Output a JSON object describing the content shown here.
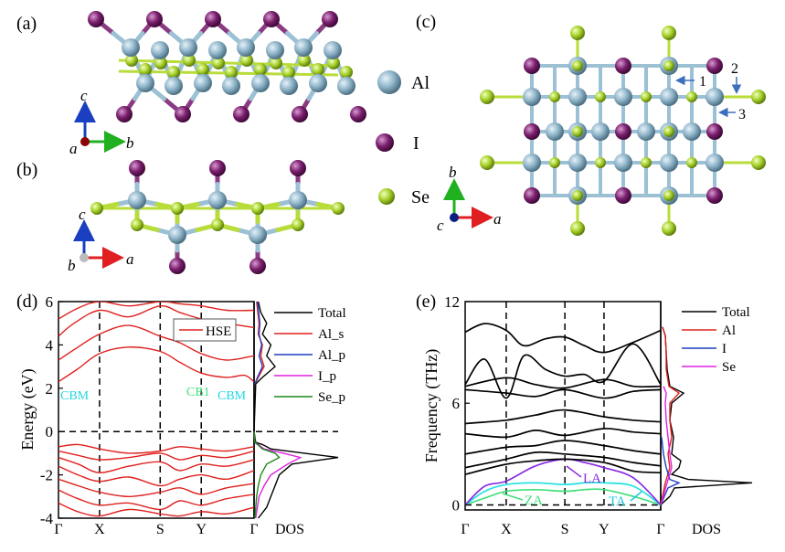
{
  "panels": {
    "a": "(a)",
    "b": "(b)",
    "c": "(c)",
    "d": "(d)",
    "e": "(e)"
  },
  "species_legend": [
    {
      "label": "Al",
      "color": "#8fb4c9"
    },
    {
      "label": "I",
      "color": "#7b1f6e"
    },
    {
      "label": "Se",
      "color": "#a6d12a"
    }
  ],
  "axes_glyphs": {
    "a_panel": {
      "up": "c",
      "origin": "a",
      "right": "b"
    },
    "b_panel": {
      "up": "c",
      "origin": "b",
      "right": "a"
    },
    "c_panel": {
      "up": "b",
      "origin": "c",
      "right": "a"
    }
  },
  "bond_markers": [
    "1",
    "2",
    "3"
  ],
  "colors": {
    "al": "#8fb4c9",
    "iodine": "#7b1f6e",
    "se": "#a6d12a",
    "x_axis": "#e02020",
    "y_axis": "#20b020",
    "z_axis": "#1a3fc0"
  },
  "chart_data": [
    {
      "panel": "d",
      "type": "line",
      "ylabel": "Energy (eV)",
      "ylim": [
        -4,
        6
      ],
      "yticks": [
        "6",
        "4",
        "2",
        "0",
        "-2",
        "-4"
      ],
      "ytick_values": [
        6,
        4,
        2,
        0,
        -2,
        -4
      ],
      "kpath": [
        "Γ",
        "X",
        "S",
        "Y",
        "Γ"
      ],
      "kpos": [
        0,
        0.21,
        0.52,
        0.73,
        1.0
      ],
      "fermi_level": 0,
      "band_legend": "HSE",
      "band_color": "#e0201e",
      "annotations": [
        "CBM",
        "CB1",
        "CBM"
      ],
      "conduction_bands": [
        {
          "x": [
            0,
            0.1,
            0.21,
            0.36,
            0.52,
            0.62,
            0.73,
            0.86,
            0.95,
            1.0
          ],
          "y": [
            2.3,
            2.9,
            3.6,
            3.9,
            3.7,
            3.2,
            2.7,
            2.5,
            2.6,
            2.3
          ]
        },
        {
          "x": [
            0,
            0.1,
            0.21,
            0.36,
            0.52,
            0.62,
            0.73,
            0.86,
            1.0
          ],
          "y": [
            3.3,
            3.9,
            4.5,
            4.9,
            4.4,
            4.1,
            3.6,
            3.3,
            3.5
          ]
        },
        {
          "x": [
            0,
            0.08,
            0.21,
            0.36,
            0.52,
            0.62,
            0.73,
            0.86,
            1.0
          ],
          "y": [
            4.4,
            5.0,
            5.6,
            5.3,
            5.8,
            5.5,
            5.2,
            5.0,
            4.8
          ]
        },
        {
          "x": [
            0,
            0.1,
            0.21,
            0.36,
            0.52,
            0.62,
            0.73,
            0.86,
            1.0
          ],
          "y": [
            5.2,
            5.7,
            6.0,
            5.8,
            6.0,
            5.9,
            5.8,
            5.6,
            5.6
          ]
        }
      ],
      "valence_bands": [
        {
          "x": [
            0,
            0.1,
            0.21,
            0.36,
            0.52,
            0.62,
            0.73,
            0.86,
            1.0
          ],
          "y": [
            -0.7,
            -0.6,
            -0.8,
            -1.0,
            -0.9,
            -0.7,
            -0.8,
            -0.9,
            -0.7
          ]
        },
        {
          "x": [
            0,
            0.1,
            0.21,
            0.36,
            0.52,
            0.62,
            0.73,
            0.86,
            1.0
          ],
          "y": [
            -0.9,
            -1.1,
            -1.3,
            -1.2,
            -1.0,
            -1.3,
            -1.1,
            -1.2,
            -0.9
          ]
        },
        {
          "x": [
            0,
            0.1,
            0.21,
            0.36,
            0.52,
            0.62,
            0.73,
            0.86,
            1.0
          ],
          "y": [
            -1.2,
            -1.5,
            -1.9,
            -1.6,
            -1.4,
            -1.8,
            -1.5,
            -1.6,
            -1.3
          ]
        },
        {
          "x": [
            0,
            0.1,
            0.21,
            0.36,
            0.52,
            0.62,
            0.73,
            0.86,
            1.0
          ],
          "y": [
            -1.6,
            -2.0,
            -2.3,
            -2.1,
            -2.5,
            -2.2,
            -2.0,
            -2.2,
            -1.8
          ]
        },
        {
          "x": [
            0,
            0.1,
            0.21,
            0.36,
            0.52,
            0.62,
            0.73,
            0.86,
            1.0
          ],
          "y": [
            -2.2,
            -2.5,
            -2.8,
            -3.0,
            -2.8,
            -2.6,
            -2.9,
            -2.6,
            -2.4
          ]
        },
        {
          "x": [
            0,
            0.1,
            0.21,
            0.36,
            0.52,
            0.62,
            0.73,
            0.86,
            1.0
          ],
          "y": [
            -2.7,
            -3.1,
            -3.4,
            -3.3,
            -3.6,
            -3.2,
            -3.4,
            -3.1,
            -2.9
          ]
        },
        {
          "x": [
            0,
            0.1,
            0.21,
            0.36,
            0.52,
            0.62,
            0.73,
            0.86,
            1.0
          ],
          "y": [
            -3.3,
            -3.7,
            -3.9,
            -3.6,
            -3.8,
            -3.9,
            -3.7,
            -3.8,
            -3.5
          ]
        }
      ],
      "dos_label": "DOS",
      "dos_legend": [
        {
          "name": "Total",
          "color": "#000000"
        },
        {
          "name": "Al_s",
          "color": "#e0201e"
        },
        {
          "name": "Al_p",
          "color": "#1f3fc0"
        },
        {
          "name": "I_p",
          "color": "#e020e0"
        },
        {
          "name": "Se_p",
          "color": "#1a8a1a"
        }
      ],
      "dos_curves": [
        {
          "name": "Total",
          "e": [
            -4,
            -3.5,
            -3,
            -2.5,
            -2,
            -1.5,
            -1.2,
            -1,
            -0.8,
            -0.6,
            -0.5,
            0,
            2.2,
            2.5,
            3,
            3.5,
            4,
            4.5,
            5,
            5.5,
            6
          ],
          "d": [
            0.05,
            0.15,
            0.2,
            0.25,
            0.3,
            0.45,
            1.0,
            0.6,
            0.2,
            0.1,
            0.02,
            0,
            0.02,
            0.1,
            0.25,
            0.15,
            0.2,
            0.1,
            0.15,
            0.08,
            0.05
          ]
        },
        {
          "name": "I_p",
          "e": [
            -4,
            -3,
            -2.5,
            -2,
            -1.5,
            -1.2,
            -1,
            -0.8,
            -0.6,
            -0.5,
            0
          ],
          "d": [
            0.02,
            0.06,
            0.12,
            0.2,
            0.4,
            0.55,
            0.35,
            0.12,
            0.05,
            0.01,
            0
          ]
        },
        {
          "name": "Se_p",
          "e": [
            -4,
            -3,
            -2.5,
            -2,
            -1.5,
            -1.2,
            -1,
            -0.8,
            -0.6,
            -0.5,
            0
          ],
          "d": [
            0.01,
            0.03,
            0.05,
            0.08,
            0.15,
            0.3,
            0.25,
            0.1,
            0.04,
            0.01,
            0
          ]
        },
        {
          "name": "Al_s",
          "e": [
            2.2,
            2.5,
            3,
            3.5,
            4,
            4.5,
            5,
            6
          ],
          "d": [
            0.01,
            0.05,
            0.12,
            0.08,
            0.1,
            0.05,
            0.06,
            0.03
          ]
        },
        {
          "name": "Al_p",
          "e": [
            2.2,
            2.5,
            3,
            3.5,
            4,
            4.5,
            5,
            6
          ],
          "d": [
            0.01,
            0.04,
            0.1,
            0.06,
            0.09,
            0.06,
            0.07,
            0.04
          ]
        }
      ]
    },
    {
      "panel": "e",
      "type": "line",
      "ylabel": "Frequency (THz)",
      "ylim": [
        -0.3,
        12
      ],
      "yticks": [
        "12",
        "6",
        "0"
      ],
      "ytick_values": [
        12,
        6,
        0
      ],
      "kpath": [
        "Γ",
        "X",
        "S",
        "Y",
        "Γ"
      ],
      "kpos": [
        0,
        0.21,
        0.51,
        0.71,
        1.0
      ],
      "annotations": [
        "ZA",
        "LA",
        "TA"
      ],
      "branches": [
        {
          "name": "ZA",
          "color": "#3fe07a",
          "x": [
            0,
            0.1,
            0.21,
            0.36,
            0.51,
            0.61,
            0.71,
            0.86,
            1.0
          ],
          "y": [
            0,
            0.4,
            0.8,
            0.9,
            0.8,
            0.9,
            0.9,
            0.5,
            0
          ]
        },
        {
          "name": "TA",
          "color": "#20e0e0",
          "x": [
            0,
            0.1,
            0.21,
            0.36,
            0.51,
            0.61,
            0.71,
            0.86,
            1.0
          ],
          "y": [
            0,
            0.8,
            1.2,
            1.3,
            1.2,
            1.3,
            1.3,
            1.1,
            0
          ]
        },
        {
          "name": "LA",
          "color": "#8a2be2",
          "x": [
            0,
            0.1,
            0.21,
            0.36,
            0.51,
            0.61,
            0.71,
            0.86,
            1.0
          ],
          "y": [
            0,
            1.1,
            1.4,
            2.3,
            2.7,
            2.5,
            2.2,
            1.6,
            0
          ]
        },
        {
          "name": "",
          "color": "#000000",
          "x": [
            0,
            0.21,
            0.36,
            0.51,
            0.71,
            0.86,
            1.0
          ],
          "y": [
            1.8,
            2.4,
            2.6,
            2.7,
            2.5,
            2.0,
            1.9
          ]
        },
        {
          "name": "",
          "color": "#000000",
          "x": [
            0,
            0.21,
            0.36,
            0.51,
            0.71,
            0.86,
            1.0
          ],
          "y": [
            2.2,
            2.7,
            3.1,
            3.0,
            2.8,
            2.5,
            2.3
          ]
        },
        {
          "name": "",
          "color": "#000000",
          "x": [
            0,
            0.21,
            0.36,
            0.51,
            0.71,
            0.86,
            1.0
          ],
          "y": [
            3.0,
            3.4,
            3.5,
            3.8,
            3.5,
            3.2,
            3.0
          ]
        },
        {
          "name": "",
          "color": "#000000",
          "x": [
            0,
            0.21,
            0.36,
            0.51,
            0.71,
            0.86,
            1.0
          ],
          "y": [
            4.2,
            4.0,
            4.4,
            4.1,
            4.5,
            4.3,
            4.2
          ]
        },
        {
          "name": "",
          "color": "#000000",
          "x": [
            0,
            0.21,
            0.36,
            0.51,
            0.71,
            0.86,
            1.0
          ],
          "y": [
            4.8,
            5.0,
            5.3,
            5.6,
            5.2,
            5.0,
            4.9
          ]
        },
        {
          "name": "",
          "color": "#000000",
          "x": [
            0,
            0.21,
            0.36,
            0.51,
            0.71,
            0.86,
            1.0
          ],
          "y": [
            6.8,
            6.6,
            6.4,
            6.8,
            6.3,
            6.7,
            6.8
          ]
        },
        {
          "name": "",
          "color": "#000000",
          "x": [
            0,
            0.21,
            0.36,
            0.51,
            0.71,
            0.86,
            1.0
          ],
          "y": [
            7.0,
            7.5,
            7.1,
            6.9,
            7.4,
            7.0,
            7.0
          ]
        },
        {
          "name": "",
          "color": "#000000",
          "x": [
            0,
            0.1,
            0.21,
            0.3,
            0.41,
            0.51,
            0.61,
            0.71,
            0.86,
            1.0
          ],
          "y": [
            7.1,
            8.6,
            6.3,
            8.8,
            8.0,
            7.6,
            7.7,
            7.3,
            9.5,
            7.1
          ]
        },
        {
          "name": "",
          "color": "#000000",
          "x": [
            0,
            0.1,
            0.21,
            0.3,
            0.41,
            0.51,
            0.61,
            0.71,
            0.86,
            1.0
          ],
          "y": [
            10.2,
            10.7,
            10.3,
            9.4,
            9.8,
            9.9,
            9.4,
            9.0,
            9.6,
            10.3
          ]
        }
      ],
      "dos_label": "DOS",
      "dos_legend": [
        {
          "name": "Total",
          "color": "#000000"
        },
        {
          "name": "Al",
          "color": "#e0201e"
        },
        {
          "name": "I",
          "color": "#1f3fc0"
        },
        {
          "name": "Se",
          "color": "#e020e0"
        }
      ],
      "dos_curves": [
        {
          "name": "Total",
          "f": [
            0,
            0.5,
            1.0,
            1.3,
            1.5,
            1.8,
            2.2,
            2.6,
            3.0,
            4.0,
            5.0,
            6.0,
            6.6,
            7.0,
            8.0,
            9.0,
            10.0,
            10.5
          ],
          "d": [
            0,
            0.1,
            0.15,
            1.0,
            0.3,
            0.12,
            0.2,
            0.22,
            0.12,
            0.14,
            0.1,
            0.12,
            0.25,
            0.1,
            0.07,
            0.06,
            0.05,
            0.02
          ]
        },
        {
          "name": "Al",
          "f": [
            0,
            1.3,
            2.2,
            3.0,
            4.0,
            5.0,
            6.0,
            6.6,
            7.0,
            8.0,
            9.0,
            10.0,
            10.5
          ],
          "d": [
            0,
            0.05,
            0.1,
            0.08,
            0.12,
            0.1,
            0.1,
            0.2,
            0.09,
            0.06,
            0.06,
            0.05,
            0.02
          ]
        },
        {
          "name": "I",
          "f": [
            0,
            1.0,
            1.3,
            1.5,
            2.2,
            3.0,
            4.0
          ],
          "d": [
            0,
            0.08,
            0.2,
            0.1,
            0.06,
            0.03,
            0.01
          ]
        },
        {
          "name": "Se",
          "f": [
            0,
            1.3,
            2.2,
            3.0,
            4.0,
            5.0,
            6.0,
            6.6,
            7.0
          ],
          "d": [
            0,
            0.07,
            0.12,
            0.1,
            0.08,
            0.06,
            0.05,
            0.06,
            0.03
          ]
        }
      ]
    }
  ]
}
